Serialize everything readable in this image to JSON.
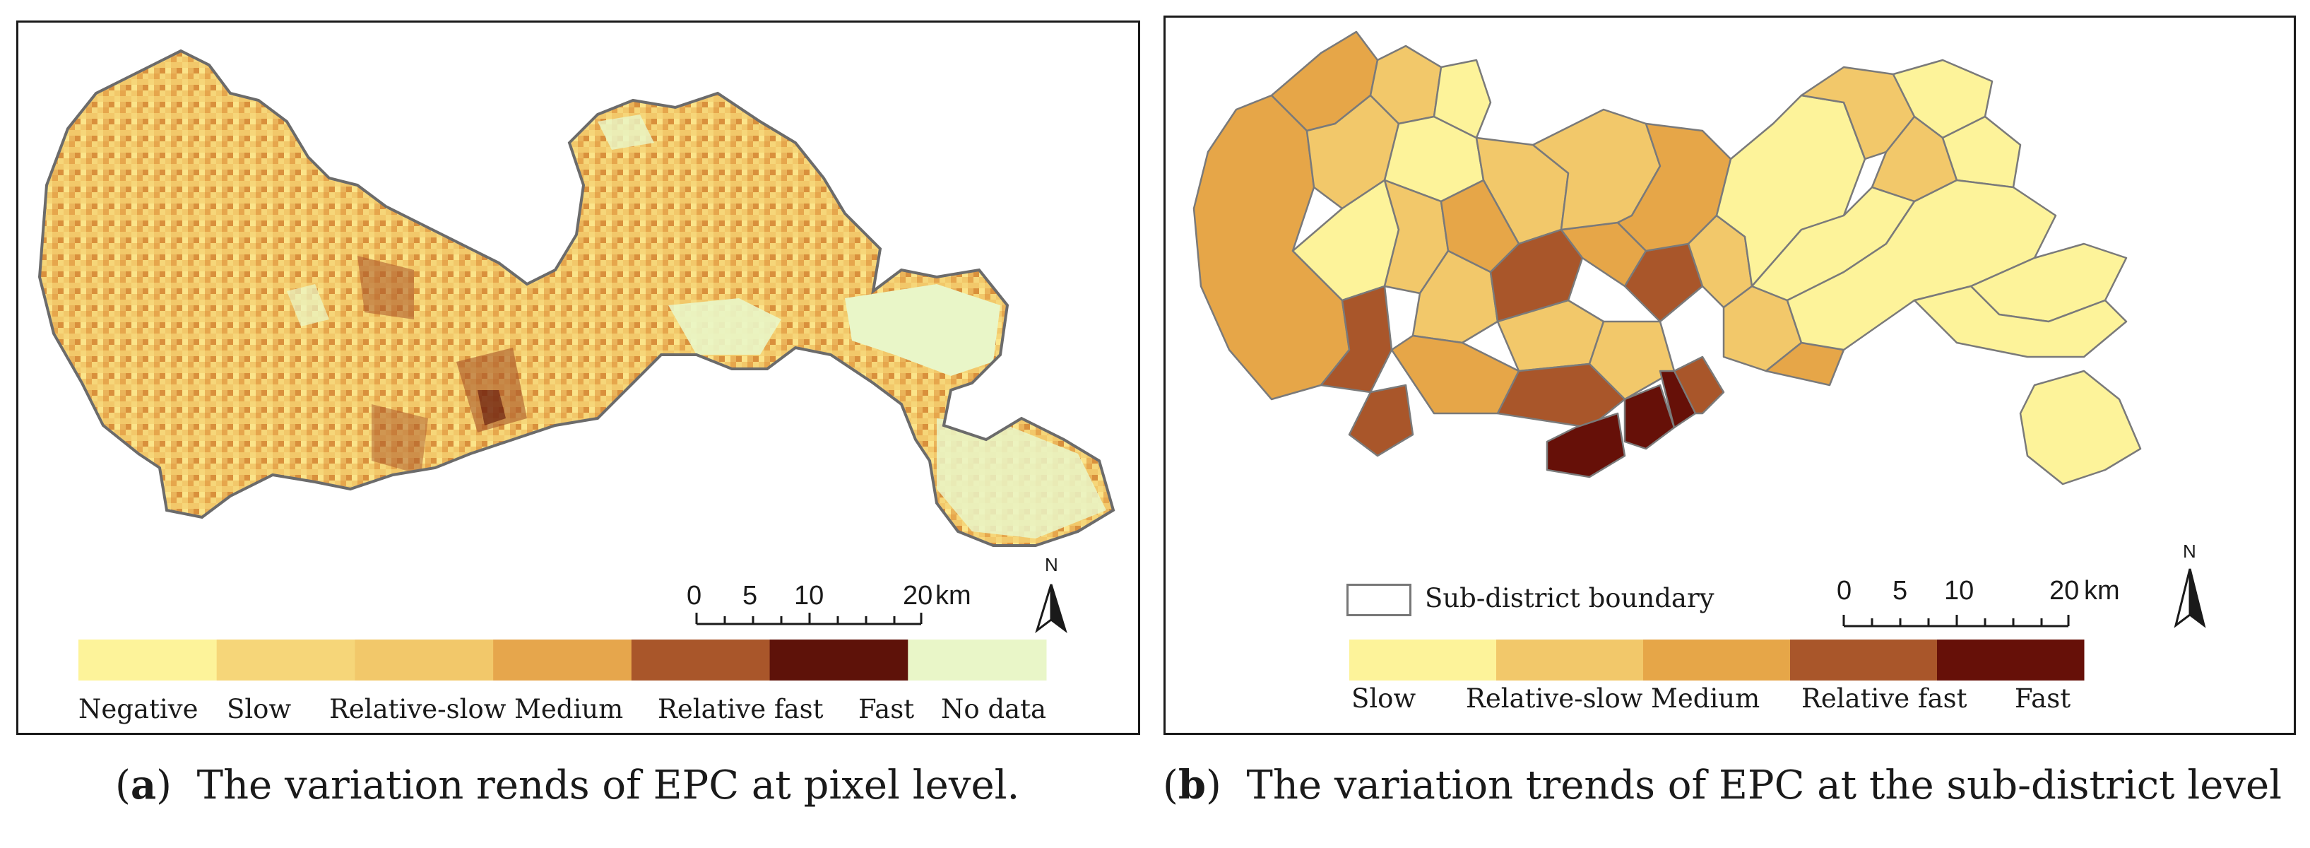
{
  "panel_a": {
    "caption_letter": "a",
    "caption_text": "The variation rends of EPC at pixel level.",
    "legend": [
      {
        "label": "Negative",
        "color": "#fdf39a"
      },
      {
        "label": "Slow",
        "color": "#f6d679"
      },
      {
        "label": "Relative-slow",
        "color": "#f2c86a"
      },
      {
        "label": "Medium",
        "color": "#e6a64c"
      },
      {
        "label": "Relative fast",
        "color": "#a9562a"
      },
      {
        "label": "Fast",
        "color": "#5e1209"
      },
      {
        "label": "No data",
        "color": "#e9f6c8"
      }
    ],
    "scale": {
      "ticks": [
        "0",
        "5",
        "10",
        "20"
      ],
      "unit": "km"
    },
    "north": "N"
  },
  "panel_b": {
    "caption_letter": "b",
    "caption_text": "The variation trends of EPC at the sub-district level",
    "boundary_label": "Sub-district boundary",
    "legend": [
      {
        "label": "Slow",
        "color": "#fdf39a"
      },
      {
        "label": "Relative-slow",
        "color": "#f2c86a"
      },
      {
        "label": "Medium",
        "color": "#e6a648"
      },
      {
        "label": "Relative fast",
        "color": "#a9562a"
      },
      {
        "label": "Fast",
        "color": "#661008"
      }
    ],
    "scale": {
      "ticks": [
        "0",
        "5",
        "10",
        "20"
      ],
      "unit": "km"
    },
    "north": "N"
  }
}
